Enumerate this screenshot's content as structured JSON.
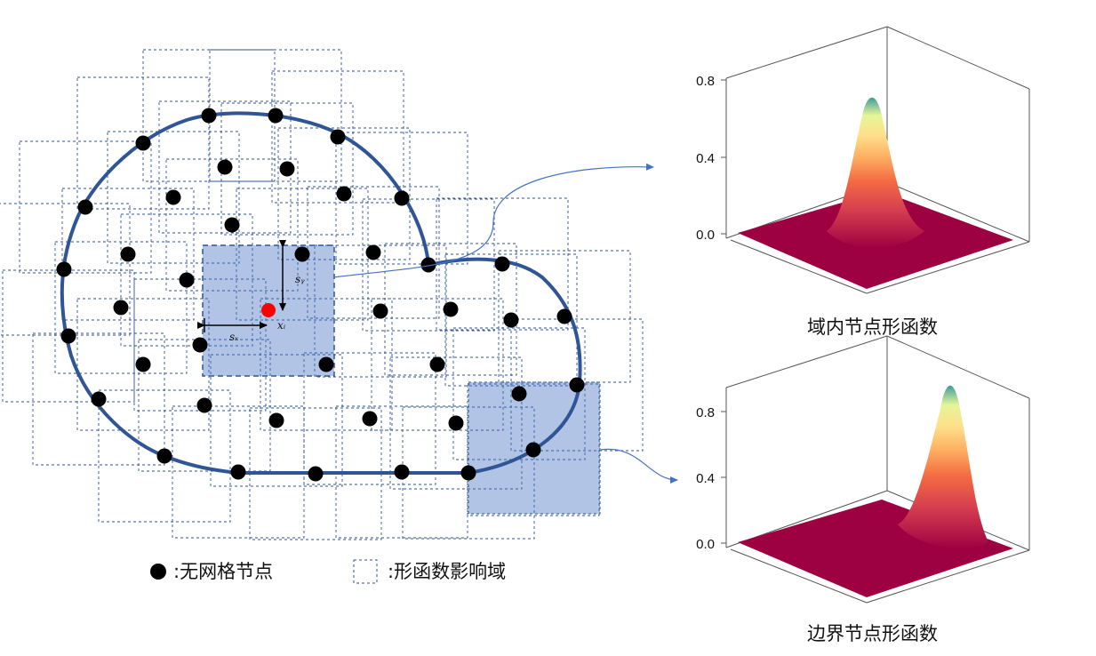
{
  "labels": {
    "sy": "sᵧ",
    "sx": "sₓ",
    "xi": "xᵢ"
  },
  "legend": {
    "node_label": ":无网格节点",
    "domain_label": ":形函数影响域"
  },
  "plots": [
    {
      "caption": "域内节点形函数",
      "yticks": [
        "0.8",
        "0.4",
        "0.0"
      ]
    },
    {
      "caption": "边界节点形函数",
      "yticks": [
        "0.8",
        "0.4",
        "0.0"
      ]
    }
  ],
  "colors": {
    "boundary": "#2f5597",
    "node": "#000000",
    "highlight_node": "#ff0000",
    "domain_fill": "#4472c4",
    "domain_dash": "#2f5597",
    "surface_base": "#9e0142"
  }
}
